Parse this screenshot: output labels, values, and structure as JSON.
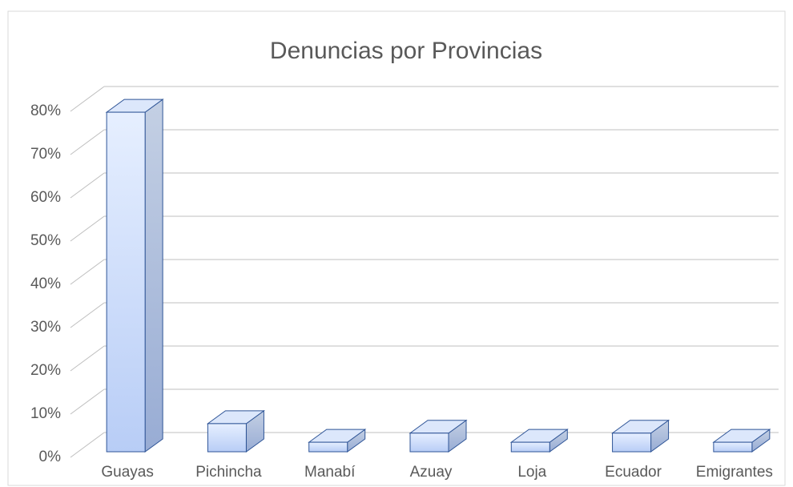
{
  "chart_data": {
    "type": "bar3d",
    "title": "Denuncias por Provincias",
    "categories": [
      "Guayas",
      "Pichincha",
      "Manabí",
      "Azuay",
      "Loja",
      "Ecuador",
      "Emigrantes"
    ],
    "values": [
      78.5,
      6.5,
      2.2,
      4.3,
      2.2,
      4.3,
      2.2
    ],
    "color": "#c5d9fb",
    "ylim": [
      0,
      80
    ],
    "yticks": [
      {
        "value": 0,
        "label": "0%"
      },
      {
        "value": 10,
        "label": "10%"
      },
      {
        "value": 20,
        "label": "20%"
      },
      {
        "value": 30,
        "label": "30%"
      },
      {
        "value": 40,
        "label": "40%"
      },
      {
        "value": 50,
        "label": "50%"
      },
      {
        "value": 60,
        "label": "60%"
      },
      {
        "value": 70,
        "label": "70%"
      },
      {
        "value": 80,
        "label": "80%"
      }
    ],
    "grid": true
  }
}
